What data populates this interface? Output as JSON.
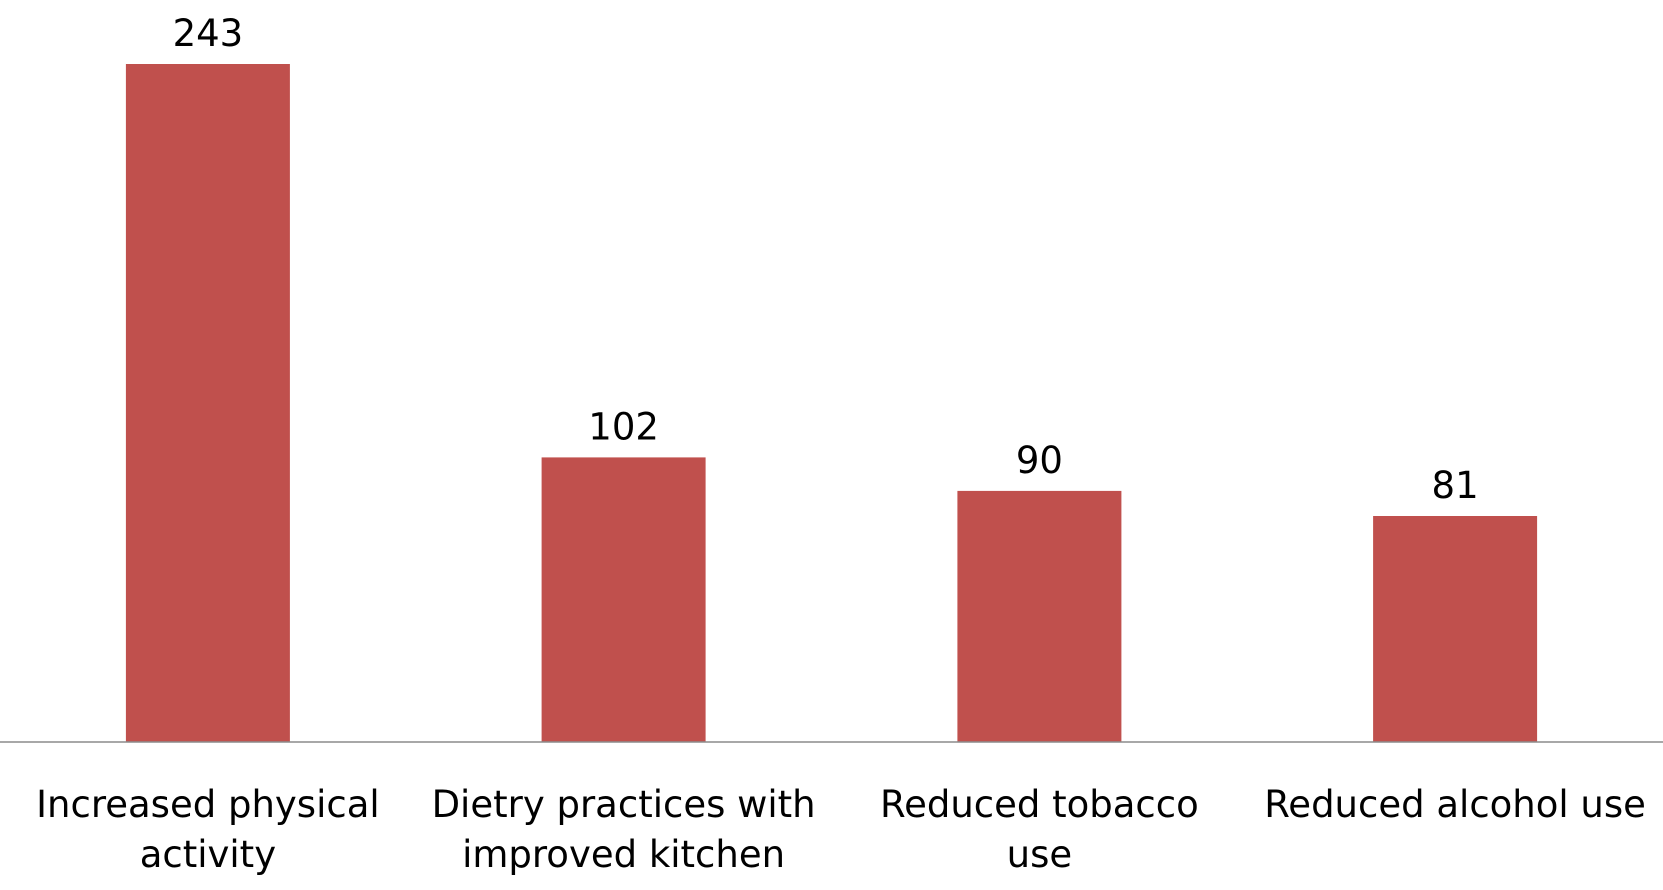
{
  "chart_data": {
    "type": "bar",
    "categories": [
      [
        "Increased physical",
        "activity"
      ],
      [
        "Dietry practices with",
        "improved kitchen"
      ],
      [
        "Reduced tobacco",
        "use"
      ],
      [
        "Reduced alcohol use"
      ]
    ],
    "values": [
      243,
      102,
      90,
      81
    ],
    "data_labels": [
      "243",
      "102",
      "90",
      "81"
    ],
    "title": "",
    "xlabel": "",
    "ylabel": "",
    "ylim": [
      0,
      243
    ],
    "grid": false,
    "legend": "none",
    "colors": {
      "bar": "#C0504D",
      "axis": "#8C8C8C"
    }
  }
}
